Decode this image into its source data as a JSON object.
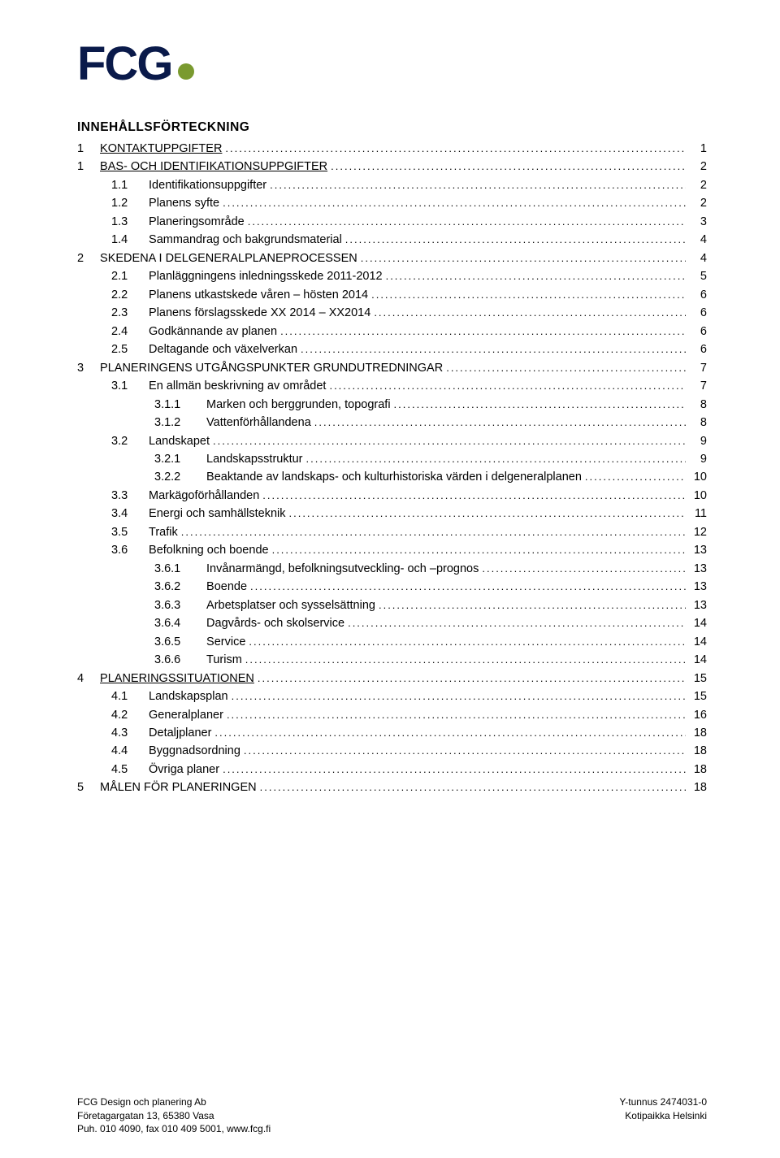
{
  "logo": {
    "text": "FCG"
  },
  "title": "INNEHÅLLSFÖRTECKNING",
  "toc": [
    {
      "lvl": "1a",
      "num": "1",
      "label": "KONTAKTUPPGIFTER",
      "page": "1"
    },
    {
      "lvl": "1a",
      "num": "1",
      "label": "BAS- OCH IDENTIFIKATIONSUPPGIFTER",
      "page": "2"
    },
    {
      "lvl": "2",
      "num": "1.1",
      "label": "Identifikationsuppgifter",
      "page": "2"
    },
    {
      "lvl": "2",
      "num": "1.2",
      "label": "Planens syfte",
      "page": "2"
    },
    {
      "lvl": "2",
      "num": "1.3",
      "label": "Planeringsområde",
      "page": "3"
    },
    {
      "lvl": "2",
      "num": "1.4",
      "label": "Sammandrag och bakgrundsmaterial",
      "page": "4"
    },
    {
      "lvl": "1",
      "num": "2",
      "label": "SKEDENA I DELGENERALPLANEPROCESSEN",
      "page": "4"
    },
    {
      "lvl": "2",
      "num": "2.1",
      "label": "Planläggningens inledningsskede 2011-2012",
      "page": "5"
    },
    {
      "lvl": "2",
      "num": "2.2",
      "label": "Planens utkastskede våren – hösten 2014",
      "page": "6"
    },
    {
      "lvl": "2",
      "num": "2.3",
      "label": "Planens förslagsskede XX 2014 – XX2014",
      "page": "6"
    },
    {
      "lvl": "2",
      "num": "2.4",
      "label": "Godkännande av planen",
      "page": "6"
    },
    {
      "lvl": "2",
      "num": "2.5",
      "label": "Deltagande och växelverkan",
      "page": "6"
    },
    {
      "lvl": "1",
      "num": "3",
      "label": "PLANERINGENS UTGÅNGSPUNKTER GRUNDUTREDNINGAR",
      "page": "7"
    },
    {
      "lvl": "2",
      "num": "3.1",
      "label": "En allmän beskrivning av området",
      "page": "7"
    },
    {
      "lvl": "3",
      "num": "3.1.1",
      "label": "Marken och berggrunden, topografi",
      "page": "8"
    },
    {
      "lvl": "3",
      "num": "3.1.2",
      "label": "Vattenförhållandena",
      "page": "8"
    },
    {
      "lvl": "2",
      "num": "3.2",
      "label": "Landskapet",
      "page": "9"
    },
    {
      "lvl": "3",
      "num": "3.2.1",
      "label": "Landskapsstruktur",
      "page": "9"
    },
    {
      "lvl": "3",
      "num": "3.2.2",
      "label": "Beaktande av landskaps- och kulturhistoriska värden i delgeneralplanen",
      "page": "10"
    },
    {
      "lvl": "2",
      "num": "3.3",
      "label": "Markägoförhållanden",
      "page": "10"
    },
    {
      "lvl": "2",
      "num": "3.4",
      "label": "Energi och samhällsteknik",
      "page": "11"
    },
    {
      "lvl": "2",
      "num": "3.5",
      "label": "Trafik",
      "page": "12"
    },
    {
      "lvl": "2",
      "num": "3.6",
      "label": "Befolkning och boende",
      "page": "13"
    },
    {
      "lvl": "3",
      "num": "3.6.1",
      "label": "Invånarmängd, befolkningsutveckling- och –prognos",
      "page": "13"
    },
    {
      "lvl": "3",
      "num": "3.6.2",
      "label": "Boende",
      "page": "13"
    },
    {
      "lvl": "3",
      "num": "3.6.3",
      "label": "Arbetsplatser och sysselsättning",
      "page": "13"
    },
    {
      "lvl": "3",
      "num": "3.6.4",
      "label": "Dagvårds- och skolservice",
      "page": "14"
    },
    {
      "lvl": "3",
      "num": "3.6.5",
      "label": "Service",
      "page": "14"
    },
    {
      "lvl": "3",
      "num": "3.6.6",
      "label": "Turism",
      "page": "14"
    },
    {
      "lvl": "1a",
      "num": "4",
      "label": "PLANERINGSSITUATIONEN",
      "page": "15"
    },
    {
      "lvl": "2",
      "num": "4.1",
      "label": "Landskapsplan",
      "page": "15"
    },
    {
      "lvl": "2",
      "num": "4.2",
      "label": "Generalplaner",
      "page": "16"
    },
    {
      "lvl": "2",
      "num": "4.3",
      "label": "Detaljplaner",
      "page": "18"
    },
    {
      "lvl": "2",
      "num": "4.4",
      "label": "Byggnadsordning",
      "page": "18"
    },
    {
      "lvl": "2",
      "num": "4.5",
      "label": "Övriga planer",
      "page": "18"
    },
    {
      "lvl": "1",
      "num": "5",
      "label": "MÅLEN FÖR PLANERINGEN",
      "page": "18"
    }
  ],
  "footer": {
    "left_line1": "FCG Design och planering Ab",
    "left_line2": "Företagargatan 13, 65380 Vasa",
    "left_line3": "Puh. 010 4090, fax 010 409 5001, www.fcg.fi",
    "right_line1": "Y-tunnus 2474031-0",
    "right_line2": "Kotipaikka Helsinki"
  }
}
